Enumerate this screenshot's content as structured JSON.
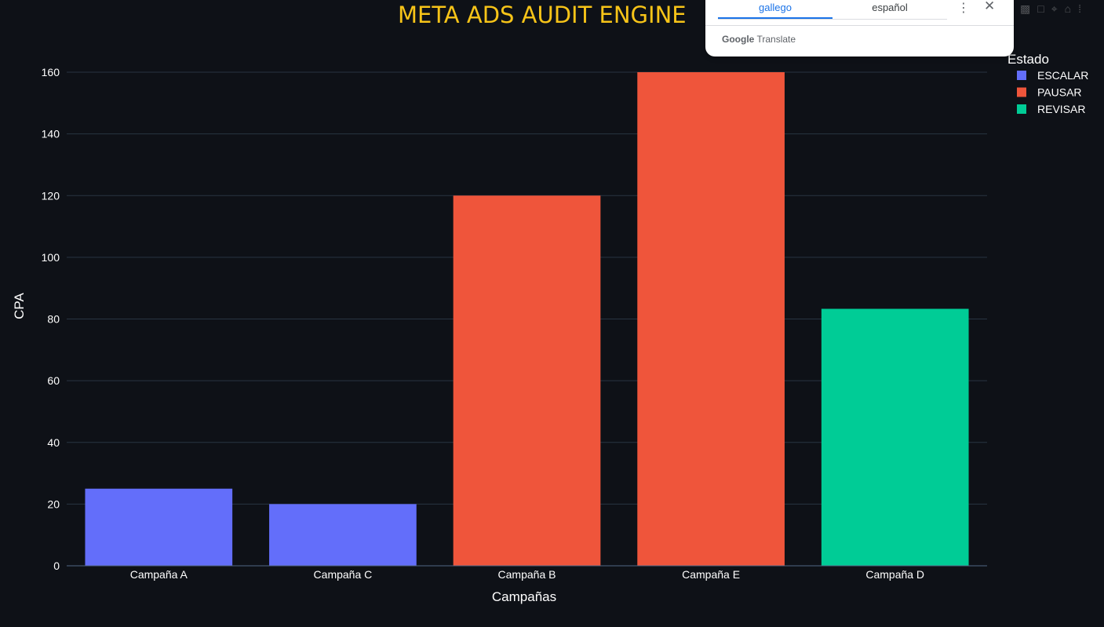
{
  "chart_data": {
    "type": "bar",
    "title": "META ADS AUDIT ENGINE",
    "xlabel": "Campañas",
    "ylabel": "CPA",
    "categories": [
      "Campaña A",
      "Campaña C",
      "Campaña B",
      "Campaña E",
      "Campaña D"
    ],
    "values": [
      25,
      20,
      120,
      160,
      83.3
    ],
    "status": [
      "ESCALAR",
      "ESCALAR",
      "PAUSAR",
      "PAUSAR",
      "REVISAR"
    ],
    "ylim": [
      0,
      160
    ],
    "yticks": [
      0,
      20,
      40,
      60,
      80,
      100,
      120,
      140,
      160
    ],
    "grid": true,
    "legend": {
      "title": "Estado",
      "placement": "top-right",
      "items": [
        {
          "name": "ESCALAR",
          "color": "#636efa"
        },
        {
          "name": "PAUSAR",
          "color": "#ef553b"
        },
        {
          "name": "REVISAR",
          "color": "#00cc96"
        }
      ]
    },
    "colors": {
      "background": "#0e1117",
      "grid": "#283442",
      "title": "#f7c418"
    }
  },
  "translate_popup": {
    "tabs": [
      "gallego",
      "español"
    ],
    "active_tab": "gallego",
    "brand_google": "Google",
    "brand_translate": "Translate"
  },
  "icons": [
    "more-vert-icon",
    "close-icon",
    "toolbar-icons"
  ]
}
